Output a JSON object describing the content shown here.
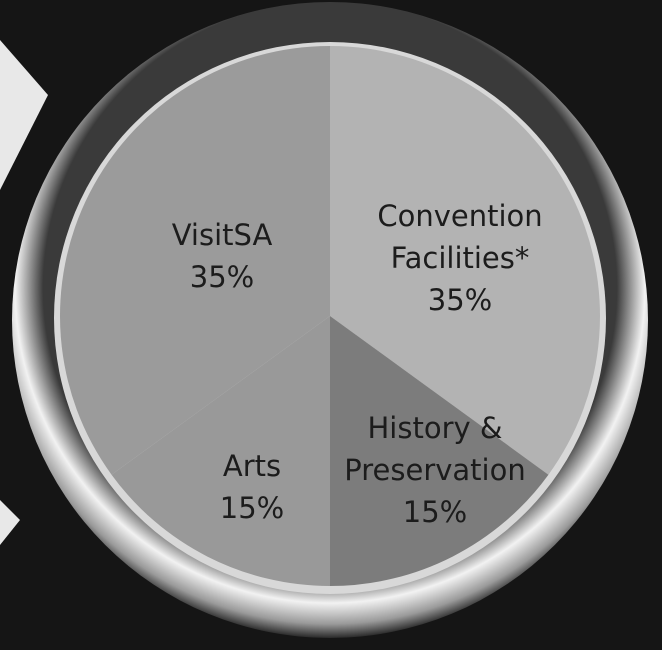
{
  "chart_data": {
    "type": "pie",
    "categories": [
      "Convention Facilities*",
      "History & Preservation",
      "Arts",
      "VisitSA"
    ],
    "values": [
      35,
      15,
      15,
      35
    ],
    "value_labels": [
      "35%",
      "15%",
      "15%",
      "35%"
    ],
    "colors": [
      "#b3b3b3",
      "#7c7c7c",
      "#999999",
      "#9b9b9b"
    ]
  }
}
